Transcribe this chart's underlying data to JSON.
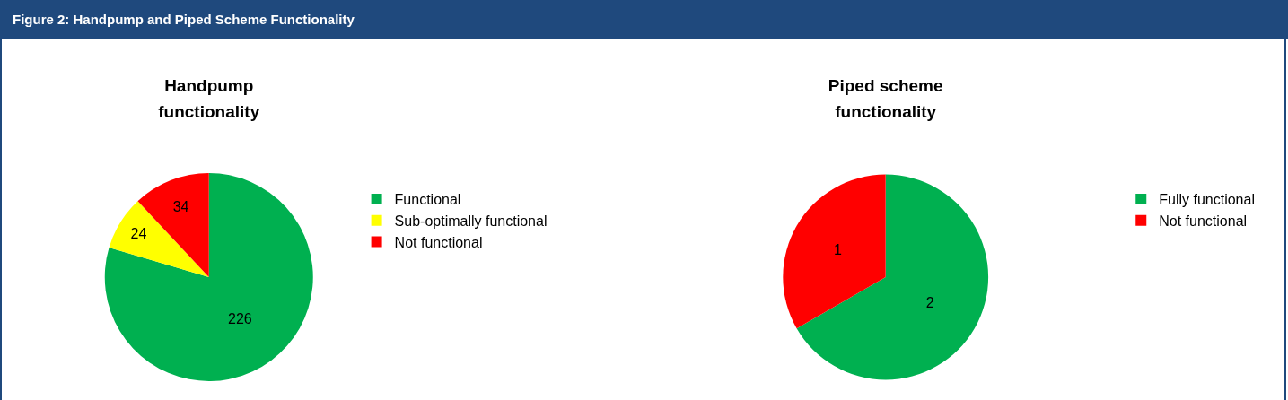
{
  "chart_data": [
    {
      "type": "pie",
      "title": "Handpump functionality",
      "annotations": [
        "Figure 2: Handpump and Piped Scheme Functionality"
      ],
      "categories": [
        "Functional",
        "Sub-optimally functional",
        "Not functional"
      ],
      "values": [
        226,
        24,
        34
      ],
      "colors": [
        "#00b050",
        "#ffff00",
        "#ff0000"
      ],
      "data_labels": true,
      "legend": "right"
    },
    {
      "type": "pie",
      "title": "Piped scheme functionality",
      "categories": [
        "Fully functional",
        "Not functional"
      ],
      "values": [
        2,
        1
      ],
      "colors": [
        "#00b050",
        "#ff0000"
      ],
      "data_labels": true,
      "legend": "right"
    }
  ]
}
